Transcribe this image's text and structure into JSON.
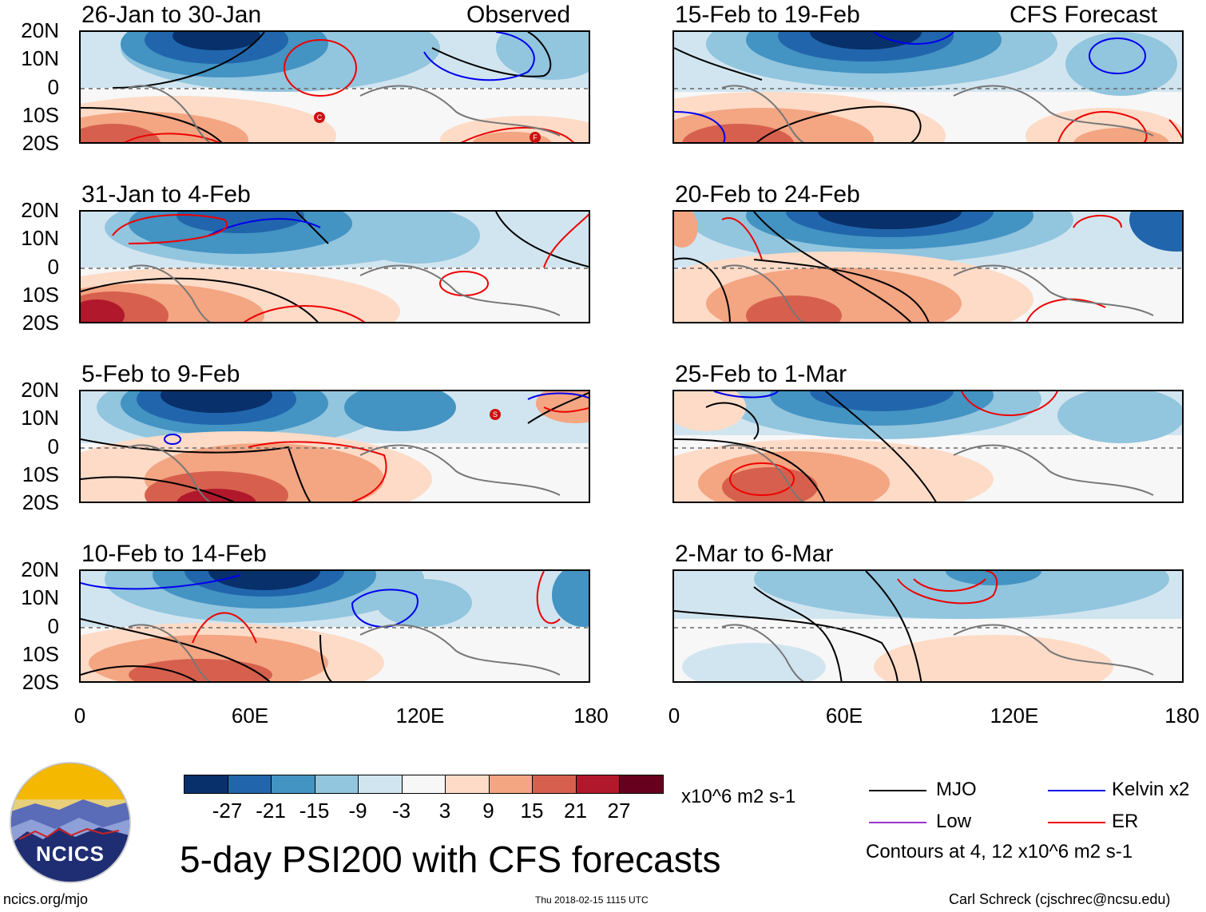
{
  "panels": [
    {
      "title": "26-Jan to 30-Jan",
      "tag": "Observed"
    },
    {
      "title": "15-Feb to 19-Feb",
      "tag": "CFS Forecast"
    },
    {
      "title": "31-Jan to 4-Feb",
      "tag": ""
    },
    {
      "title": "20-Feb to 24-Feb",
      "tag": ""
    },
    {
      "title": "5-Feb to 9-Feb",
      "tag": ""
    },
    {
      "title": "25-Feb to 1-Mar",
      "tag": ""
    },
    {
      "title": "10-Feb to 14-Feb",
      "tag": ""
    },
    {
      "title": "2-Mar to 6-Mar",
      "tag": ""
    }
  ],
  "lat_labels": [
    "20N",
    "10N",
    "0",
    "10S",
    "20S"
  ],
  "lon_labels": [
    "0",
    "60E",
    "120E",
    "180"
  ],
  "colorbar": {
    "labels": [
      "-27",
      "-21",
      "-15",
      "-9",
      "-3",
      "3",
      "9",
      "15",
      "21",
      "27"
    ],
    "colors": [
      "#08306b",
      "#2166ac",
      "#4393c3",
      "#92c5de",
      "#d1e5f0",
      "#f7f7f7",
      "#fddbc7",
      "#f4a582",
      "#d6604d",
      "#b2182b",
      "#67001f"
    ],
    "units": "x10^6 m2 s-1"
  },
  "legend": {
    "items": [
      {
        "label": "MJO",
        "color": "#000000"
      },
      {
        "label": "Kelvin x2",
        "color": "#0000ee"
      },
      {
        "label": "Low",
        "color": "#9933cc"
      },
      {
        "label": "ER",
        "color": "#ee0000"
      }
    ],
    "contour_note": "Contours at 4, 12 x10^6 m2 s-1"
  },
  "main_title": "5-day PSI200 with CFS forecasts",
  "logo_text": "NCICS",
  "footer": {
    "left": "ncics.org/mjo",
    "center": "Thu 2018-02-15 1115 UTC",
    "right": "Carl Schreck (cjschrec@ncsu.edu)"
  },
  "storm_markers": [
    "C",
    "F",
    "S"
  ]
}
